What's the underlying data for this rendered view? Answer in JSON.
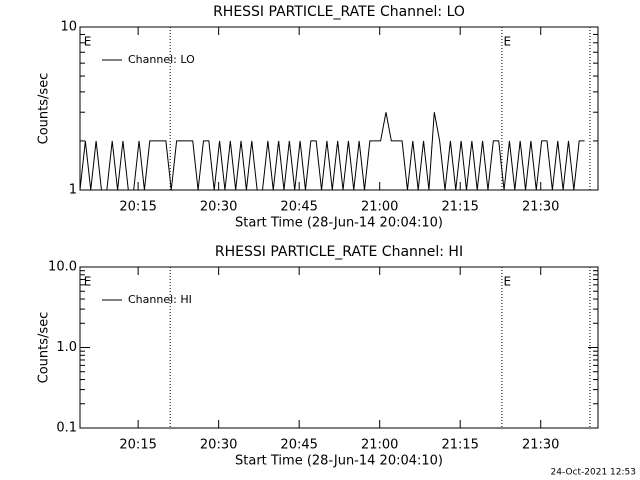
{
  "chart_data": [
    {
      "type": "line",
      "title": "RHESSI PARTICLE_RATE Channel: LO",
      "xlabel": "Start Time (28-Jun-14 20:04:10)",
      "ylabel": "Counts/sec",
      "log_y": true,
      "xlim": [
        0,
        96.5
      ],
      "ylim": [
        1,
        10
      ],
      "xticks": [
        {
          "value": 10.83,
          "label": "20:15"
        },
        {
          "value": 25.83,
          "label": "20:30"
        },
        {
          "value": 40.83,
          "label": "20:45"
        },
        {
          "value": 55.83,
          "label": "21:00"
        },
        {
          "value": 70.83,
          "label": "21:15"
        },
        {
          "value": 85.83,
          "label": "21:30"
        }
      ],
      "yticks": [
        1,
        10
      ],
      "yminorticks": [
        2,
        3,
        4,
        5,
        6,
        7,
        8,
        9
      ],
      "vlines": [
        16.8,
        78.6,
        95.0
      ],
      "annotations": [
        {
          "text": "E",
          "x": 0.7
        },
        {
          "text": "E",
          "x": 78.9
        }
      ],
      "legend": "upper left",
      "series": [
        {
          "name": "Channel: LO",
          "color": "#000000",
          "x": [
            0,
            1,
            2,
            3,
            4,
            5,
            6,
            7,
            8,
            9,
            10,
            11,
            12,
            13,
            14,
            15,
            16,
            17,
            18,
            19,
            20,
            21,
            22,
            23,
            24,
            25,
            26,
            27,
            28,
            29,
            30,
            31,
            32,
            33,
            34,
            35,
            36,
            37,
            38,
            39,
            40,
            41,
            42,
            43,
            44,
            45,
            46,
            47,
            48,
            49,
            50,
            51,
            52,
            53,
            54,
            55,
            56,
            57,
            58,
            59,
            60,
            61,
            62,
            63,
            64,
            65,
            66,
            67,
            68,
            69,
            70,
            71,
            72,
            73,
            74,
            75,
            76,
            77,
            78,
            79,
            80,
            81,
            82,
            83,
            84,
            85,
            86,
            87,
            88,
            89,
            90,
            91,
            92,
            93,
            94
          ],
          "values": [
            1,
            2,
            1,
            2,
            1,
            1,
            2,
            1,
            2,
            1,
            1,
            2,
            1,
            2,
            2,
            2,
            2,
            1,
            2,
            2,
            2,
            2,
            1,
            2,
            2,
            1,
            2,
            1,
            2,
            1,
            2,
            1,
            2,
            1,
            1,
            2,
            1,
            2,
            1,
            2,
            1,
            2,
            1,
            2,
            2,
            1,
            2,
            1,
            2,
            1,
            2,
            1,
            2,
            1,
            2,
            2,
            2,
            3,
            2,
            2,
            2,
            1,
            2,
            1,
            2,
            1,
            3,
            2,
            1,
            2,
            1,
            2,
            1,
            2,
            1,
            2,
            1,
            2,
            2,
            1,
            2,
            1,
            2,
            1,
            2,
            1,
            2,
            2,
            1,
            2,
            1,
            2,
            1,
            2,
            2
          ]
        }
      ]
    },
    {
      "type": "line",
      "title": "RHESSI PARTICLE_RATE Channel: HI",
      "xlabel": "Start Time (28-Jun-14 20:04:10)",
      "ylabel": "Counts/sec",
      "log_y": true,
      "xlim": [
        0,
        96.5
      ],
      "ylim": [
        0.1,
        10
      ],
      "xticks": [
        {
          "value": 10.83,
          "label": "20:15"
        },
        {
          "value": 25.83,
          "label": "20:30"
        },
        {
          "value": 40.83,
          "label": "20:45"
        },
        {
          "value": 55.83,
          "label": "21:00"
        },
        {
          "value": 70.83,
          "label": "21:15"
        },
        {
          "value": 85.83,
          "label": "21:30"
        }
      ],
      "yticks": [
        {
          "value": 0.1,
          "label": "0.1"
        },
        {
          "value": 1,
          "label": "1.0"
        },
        {
          "value": 10,
          "label": "10.0"
        }
      ],
      "yminorticks": [
        0.2,
        0.3,
        0.4,
        0.5,
        0.6,
        0.7,
        0.8,
        0.9,
        2,
        3,
        4,
        5,
        6,
        7,
        8,
        9
      ],
      "vlines": [
        16.8,
        78.6,
        95.0
      ],
      "annotations": [
        {
          "text": "E",
          "x": 0.7
        },
        {
          "text": "E",
          "x": 78.9
        }
      ],
      "legend": "upper left",
      "series": [
        {
          "name": "Channel: HI",
          "color": "#000000",
          "x": [],
          "values": []
        }
      ]
    }
  ],
  "footer": "24-Oct-2021 12:53"
}
